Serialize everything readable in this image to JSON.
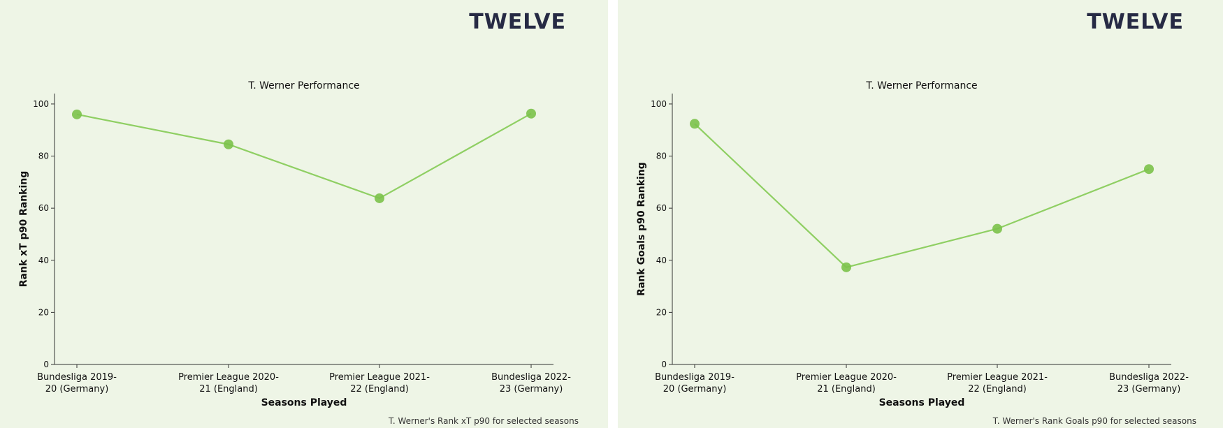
{
  "logo_text": "TWELVE",
  "colors": {
    "background": "#eef5e6",
    "line": "#8fcf63",
    "marker": "#7bc24a",
    "axis": "#333333",
    "logo": "#262a44"
  },
  "chart_data": [
    {
      "type": "line",
      "title": "T. Werner Performance",
      "xlabel": "Seasons Played",
      "ylabel": "Rank xT p90 Ranking",
      "caption": "T. Werner's Rank xT p90 for selected seasons",
      "categories": [
        [
          "Bundesliga 2019-",
          "20 (Germany)"
        ],
        [
          "Premier League 2020-",
          "21 (England)"
        ],
        [
          "Premier League 2021-",
          "22 (England)"
        ],
        [
          "Bundesliga 2022-",
          "23 (Germany)"
        ]
      ],
      "values": [
        96,
        84.5,
        63.8,
        96.3
      ],
      "ylim": [
        0,
        104
      ],
      "yticks": [
        0,
        20,
        40,
        60,
        80,
        100
      ],
      "grid": false
    },
    {
      "type": "line",
      "title": "T. Werner Performance",
      "xlabel": "Seasons Played",
      "ylabel": "Rank Goals p90 Ranking",
      "caption": "T. Werner's Rank Goals p90 for selected seasons",
      "categories": [
        [
          "Bundesliga 2019-",
          "20 (Germany)"
        ],
        [
          "Premier League 2020-",
          "21 (England)"
        ],
        [
          "Premier League 2021-",
          "22 (England)"
        ],
        [
          "Bundesliga 2022-",
          "23 (Germany)"
        ]
      ],
      "values": [
        92.4,
        37.3,
        52.1,
        75
      ],
      "ylim": [
        0,
        104
      ],
      "yticks": [
        0,
        20,
        40,
        60,
        80,
        100
      ],
      "grid": false
    }
  ]
}
